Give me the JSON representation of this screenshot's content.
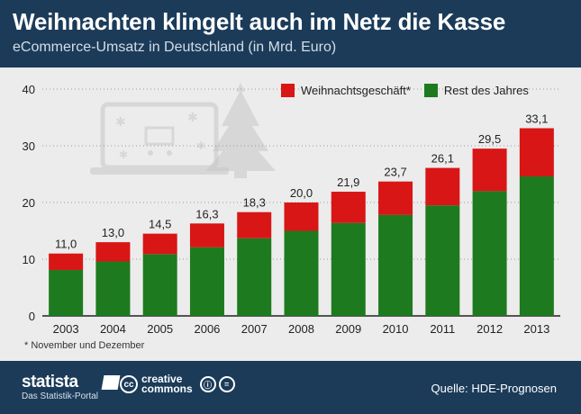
{
  "header": {
    "title": "Weihnachten klingelt auch im Netz die Kasse",
    "subtitle": "eCommerce-Umsatz in Deutschland (in Mrd. Euro)"
  },
  "legend": {
    "christmas": "Weihnachtsgeschäft*",
    "rest": "Rest des Jahres"
  },
  "footnote": "* November und Dezember",
  "footer": {
    "brand": "statista",
    "tagline": "Das Statistik-Portal",
    "cc_line1": "creative",
    "cc_line2": "commons",
    "cc_symbol": "cc",
    "source": "Quelle: HDE-Prognosen"
  },
  "chart_data": {
    "type": "bar",
    "stacked": true,
    "categories": [
      "2003",
      "2004",
      "2005",
      "2006",
      "2007",
      "2008",
      "2009",
      "2010",
      "2011",
      "2012",
      "2013"
    ],
    "series": [
      {
        "name": "Rest des Jahres",
        "color": "#1e7a1e",
        "values": [
          8.1,
          9.6,
          10.9,
          12.1,
          13.7,
          15.0,
          16.4,
          17.8,
          19.5,
          22.0,
          24.6
        ]
      },
      {
        "name": "Weihnachtsgeschäft*",
        "color": "#d81616",
        "values": [
          2.9,
          3.4,
          3.6,
          4.2,
          4.6,
          5.0,
          5.5,
          5.9,
          6.6,
          7.5,
          8.5
        ]
      }
    ],
    "totals": [
      11.0,
      13.0,
      14.5,
      16.3,
      18.3,
      20.0,
      21.9,
      23.7,
      26.1,
      29.5,
      33.1
    ],
    "total_labels": [
      "11,0",
      "13,0",
      "14,5",
      "16,3",
      "18,3",
      "20,0",
      "21,9",
      "23,7",
      "26,1",
      "29,5",
      "33,1"
    ],
    "y_ticks": [
      0,
      10,
      20,
      30,
      40
    ],
    "ylim": [
      0,
      40
    ],
    "grid": true
  }
}
